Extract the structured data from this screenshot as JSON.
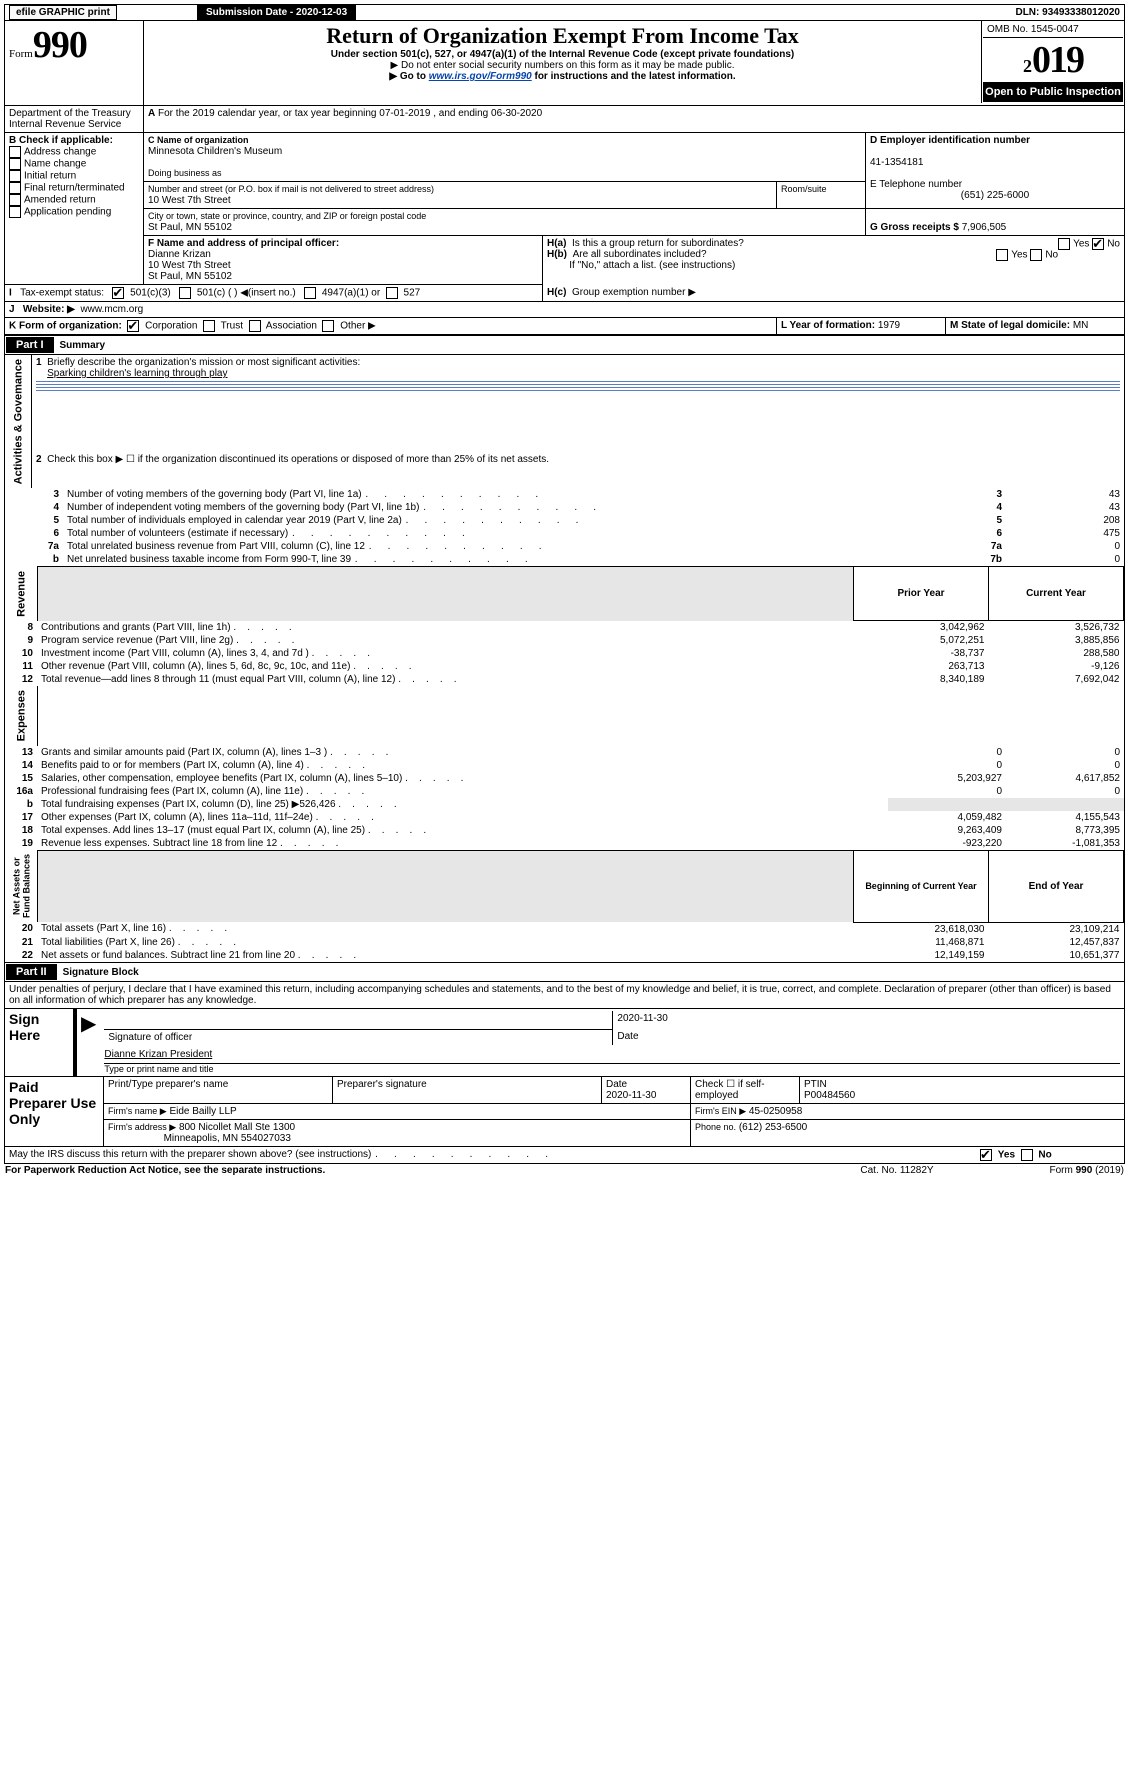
{
  "top": {
    "efile": "efile GRAPHIC print",
    "submission_label": "Submission Date - 2020-12-03",
    "dln": "DLN: 93493338012020"
  },
  "header": {
    "form_word": "Form",
    "form_num": "990",
    "title": "Return of Organization Exempt From Income Tax",
    "subtitle": "Under section 501(c), 527, or 4947(a)(1) of the Internal Revenue Code (except private foundations)",
    "note1": "▶ Do not enter social security numbers on this form as it may be made public.",
    "note2_pre": "▶ Go to ",
    "note2_link": "www.irs.gov/Form990",
    "note2_post": " for instructions and the latest information.",
    "dept1": "Department of the Treasury",
    "dept2": "Internal Revenue Service",
    "omb": "OMB No. 1545-0047",
    "year_sm": "2",
    "year_lg": "019",
    "open": "Open to Public Inspection"
  },
  "A": {
    "line": "For the 2019 calendar year, or tax year beginning 07-01-2019    , and ending 06-30-2020"
  },
  "B": {
    "hdr": "B Check if applicable:",
    "opts": [
      "Address change",
      "Name change",
      "Initial return",
      "Final return/terminated",
      "Amended return",
      "Application pending"
    ]
  },
  "C": {
    "name_lbl": "C Name of organization",
    "name": "Minnesota Children's Museum",
    "dba": "Doing business as",
    "addr_lbl": "Number and street (or P.O. box if mail is not delivered to street address)",
    "room": "Room/suite",
    "addr": "10 West 7th Street",
    "city_lbl": "City or town, state or province, country, and ZIP or foreign postal code",
    "city": "St Paul, MN  55102"
  },
  "D": {
    "lbl": "D Employer identification number",
    "val": "41-1354181"
  },
  "E": {
    "lbl": "E Telephone number",
    "val": "(651) 225-6000"
  },
  "G": {
    "lbl": "G Gross receipts $",
    "val": "7,906,505"
  },
  "F": {
    "lbl": "F  Name and address of principal officer:",
    "name": "Dianne Krizan",
    "addr1": "10 West 7th Street",
    "addr2": "St Paul, MN  55102"
  },
  "H": {
    "a": "Is this a group return for subordinates?",
    "b": "Are all subordinates included?",
    "b_note": "If \"No,\" attach a list. (see instructions)",
    "c": "Group exemption number ▶"
  },
  "I": {
    "lbl": "Tax-exempt status:",
    "opt1": "501(c)(3)",
    "opt2": "501(c) (  ) ◀(insert no.)",
    "opt3": "4947(a)(1) or",
    "opt4": "527"
  },
  "J": {
    "lbl": "Website: ▶",
    "val": "www.mcm.org"
  },
  "K": {
    "lbl": "K Form of organization:",
    "o1": "Corporation",
    "o2": "Trust",
    "o3": "Association",
    "o4": "Other ▶"
  },
  "L": {
    "lbl": "L Year of formation:",
    "val": "1979"
  },
  "M": {
    "lbl": "M State of legal domicile:",
    "val": "MN"
  },
  "part1": {
    "hdr": "Part I",
    "title": "Summary",
    "l1": "Briefly describe the organization's mission or most significant activities:",
    "l1v": "Sparking children's learning through play",
    "l2": "Check this box ▶ ☐  if the organization discontinued its operations or disposed of more than 25% of its net assets.",
    "rows_gov": [
      {
        "n": "3",
        "t": "Number of voting members of the governing body (Part VI, line 1a)",
        "rn": "3",
        "v": "43"
      },
      {
        "n": "4",
        "t": "Number of independent voting members of the governing body (Part VI, line 1b)",
        "rn": "4",
        "v": "43"
      },
      {
        "n": "5",
        "t": "Total number of individuals employed in calendar year 2019 (Part V, line 2a)",
        "rn": "5",
        "v": "208"
      },
      {
        "n": "6",
        "t": "Total number of volunteers (estimate if necessary)",
        "rn": "6",
        "v": "475"
      },
      {
        "n": "7a",
        "t": "Total unrelated business revenue from Part VIII, column (C), line 12",
        "rn": "7a",
        "v": "0"
      },
      {
        "n": "b",
        "t": "Net unrelated business taxable income from Form 990-T, line 39",
        "rn": "7b",
        "v": "0"
      }
    ],
    "col_py": "Prior Year",
    "col_cy": "Current Year",
    "rows_rev": [
      {
        "n": "8",
        "t": "Contributions and grants (Part VIII, line 1h)",
        "py": "3,042,962",
        "cy": "3,526,732"
      },
      {
        "n": "9",
        "t": "Program service revenue (Part VIII, line 2g)",
        "py": "5,072,251",
        "cy": "3,885,856"
      },
      {
        "n": "10",
        "t": "Investment income (Part VIII, column (A), lines 3, 4, and 7d )",
        "py": "-38,737",
        "cy": "288,580"
      },
      {
        "n": "11",
        "t": "Other revenue (Part VIII, column (A), lines 5, 6d, 8c, 9c, 10c, and 11e)",
        "py": "263,713",
        "cy": "-9,126"
      },
      {
        "n": "12",
        "t": "Total revenue—add lines 8 through 11 (must equal Part VIII, column (A), line 12)",
        "py": "8,340,189",
        "cy": "7,692,042"
      }
    ],
    "rows_exp": [
      {
        "n": "13",
        "t": "Grants and similar amounts paid (Part IX, column (A), lines 1–3 )",
        "py": "0",
        "cy": "0"
      },
      {
        "n": "14",
        "t": "Benefits paid to or for members (Part IX, column (A), line 4)",
        "py": "0",
        "cy": "0"
      },
      {
        "n": "15",
        "t": "Salaries, other compensation, employee benefits (Part IX, column (A), lines 5–10)",
        "py": "5,203,927",
        "cy": "4,617,852"
      },
      {
        "n": "16a",
        "t": "Professional fundraising fees (Part IX, column (A), line 11e)",
        "py": "0",
        "cy": "0"
      },
      {
        "n": "b",
        "t": "Total fundraising expenses (Part IX, column (D), line 25) ▶526,426",
        "py": "",
        "cy": "",
        "grey": true
      },
      {
        "n": "17",
        "t": "Other expenses (Part IX, column (A), lines 11a–11d, 11f–24e)",
        "py": "4,059,482",
        "cy": "4,155,543"
      },
      {
        "n": "18",
        "t": "Total expenses. Add lines 13–17 (must equal Part IX, column (A), line 25)",
        "py": "9,263,409",
        "cy": "8,773,395"
      },
      {
        "n": "19",
        "t": "Revenue less expenses. Subtract line 18 from line 12",
        "py": "-923,220",
        "cy": "-1,081,353"
      }
    ],
    "col_boy": "Beginning of Current Year",
    "col_eoy": "End of Year",
    "rows_na": [
      {
        "n": "20",
        "t": "Total assets (Part X, line 16)",
        "py": "23,618,030",
        "cy": "23,109,214"
      },
      {
        "n": "21",
        "t": "Total liabilities (Part X, line 26)",
        "py": "11,468,871",
        "cy": "12,457,837"
      },
      {
        "n": "22",
        "t": "Net assets or fund balances. Subtract line 21 from line 20",
        "py": "12,149,159",
        "cy": "10,651,377"
      }
    ]
  },
  "part2": {
    "hdr": "Part II",
    "title": "Signature Block",
    "decl": "Under penalties of perjury, I declare that I have examined this return, including accompanying schedules and statements, and to the best of my knowledge and belief, it is true, correct, and complete. Declaration of preparer (other than officer) is based on all information of which preparer has any knowledge.",
    "sign": "Sign Here",
    "sig_of": "Signature of officer",
    "date": "Date",
    "date_v": "2020-11-30",
    "name": "Dianne Krizan  President",
    "name_lbl": "Type or print name and title",
    "paid": "Paid Preparer Use Only",
    "p1": "Print/Type preparer's name",
    "p2": "Preparer's signature",
    "p3": "Date",
    "p3v": "2020-11-30",
    "p4": "Check ☐ if self-employed",
    "p5": "PTIN",
    "p5v": "P00484560",
    "firm_lbl": "Firm's name    ▶",
    "firm": "Eide Bailly LLP",
    "ein_lbl": "Firm's EIN ▶",
    "ein": "45-0250958",
    "addr_lbl": "Firm's address ▶",
    "addr1": "800 Nicollet Mall Ste 1300",
    "addr2": "Minneapolis, MN  554027033",
    "phone_lbl": "Phone no.",
    "phone": "(612) 253-6500",
    "discuss": "May the IRS discuss this return with the preparer shown above? (see instructions)"
  },
  "footer": {
    "l": "For Paperwork Reduction Act Notice, see the separate instructions.",
    "c": "Cat. No. 11282Y",
    "r": "Form 990 (2019)"
  }
}
